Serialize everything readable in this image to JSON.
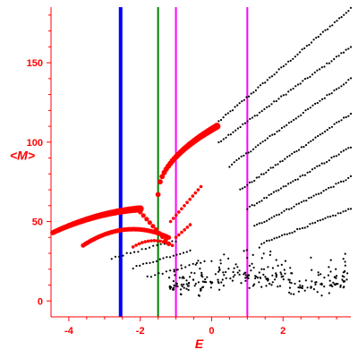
{
  "chart_data": {
    "type": "scatter",
    "title": "",
    "xlabel": "E",
    "ylabel": "<M>",
    "xlim": [
      -4.5,
      3.9
    ],
    "ylim": [
      -10,
      185
    ],
    "xticks": [
      -4,
      -2,
      0,
      2
    ],
    "xtick_labels": [
      "-4",
      "-2",
      "0",
      "2"
    ],
    "yticks": [
      0,
      50,
      100,
      150
    ],
    "ytick_labels": [
      "0",
      "50",
      "100",
      "150"
    ],
    "grid": false,
    "legend": "none",
    "colors": {
      "axis": "#ff0000",
      "blue_line": "#0000ff",
      "green_line": "#008000",
      "magenta_line": "#ff00ff",
      "red_points": "#ff0000",
      "black_points": "#000000"
    },
    "vertical_lines": [
      {
        "x": -2.55,
        "color": "#0000ff",
        "width_class": "thick"
      },
      {
        "x": -1.5,
        "color": "#008000",
        "width_class": "thin"
      },
      {
        "x": -1.0,
        "color": "#ff00ff",
        "width_class": "thin"
      },
      {
        "x": 1.0,
        "color": "#ff00ff",
        "width_class": "thin"
      }
    ],
    "red_branches": [
      {
        "x_start": -4.45,
        "x_end": -2.0,
        "y_start": 43,
        "y_end": 58,
        "shape": "concave",
        "peak_x": -2.4,
        "peak_y": 57,
        "n": 60,
        "size": "large"
      },
      {
        "x_start": -2.0,
        "x_end": -1.2,
        "y_start": 56,
        "y_end": 36,
        "shape": "linear",
        "n": 10,
        "size": "medium"
      },
      {
        "x_start": -3.6,
        "x_end": -1.2,
        "y_start": 35,
        "y_end": 40,
        "shape": "concave",
        "peak_x": -2.0,
        "peak_y": 45,
        "n": 40,
        "size": "medium"
      },
      {
        "x_start": -2.2,
        "x_end": -1.1,
        "y_start": 34,
        "y_end": 35,
        "shape": "concave",
        "peak_x": -1.6,
        "peak_y": 38,
        "n": 14,
        "size": "small"
      },
      {
        "x_start": -1.5,
        "x_end": 0.15,
        "y_start": 67,
        "y_end": 110,
        "shape": "concave",
        "n": 30,
        "size": "large"
      },
      {
        "x_start": -1.15,
        "x_end": -0.3,
        "y_start": 50,
        "y_end": 72,
        "shape": "linear",
        "n": 12,
        "size": "small"
      },
      {
        "x_start": -1.0,
        "x_end": -0.6,
        "y_start": 40,
        "y_end": 48,
        "shape": "linear",
        "n": 6,
        "size": "small"
      }
    ],
    "black_branches": [
      {
        "x_start": 0.2,
        "x_end": 3.9,
        "y_start": 113,
        "y_end": 184,
        "n": 58
      },
      {
        "x_start": 0.2,
        "x_end": 3.9,
        "y_start": 100,
        "y_end": 160,
        "n": 56
      },
      {
        "x_start": 0.5,
        "x_end": 3.9,
        "y_start": 85,
        "y_end": 140,
        "n": 52
      },
      {
        "x_start": 0.8,
        "x_end": 3.9,
        "y_start": 70,
        "y_end": 118,
        "n": 48
      },
      {
        "x_start": 1.0,
        "x_end": 3.9,
        "y_start": 58,
        "y_end": 97,
        "n": 44
      },
      {
        "x_start": 1.2,
        "x_end": 3.9,
        "y_start": 47,
        "y_end": 78,
        "n": 40
      },
      {
        "x_start": 1.4,
        "x_end": 3.9,
        "y_start": 36,
        "y_end": 58,
        "n": 36
      },
      {
        "x_start": -2.8,
        "x_end": -1.0,
        "y_start": 27,
        "y_end": 38,
        "n": 18
      },
      {
        "x_start": -2.2,
        "x_end": -0.6,
        "y_start": 21,
        "y_end": 32,
        "n": 18
      },
      {
        "x_start": -1.8,
        "x_end": -0.2,
        "y_start": 15,
        "y_end": 25,
        "n": 16
      }
    ],
    "black_cloud": {
      "x_range": [
        -1.2,
        3.9
      ],
      "y_range": [
        3,
        45
      ],
      "n": 260
    }
  }
}
